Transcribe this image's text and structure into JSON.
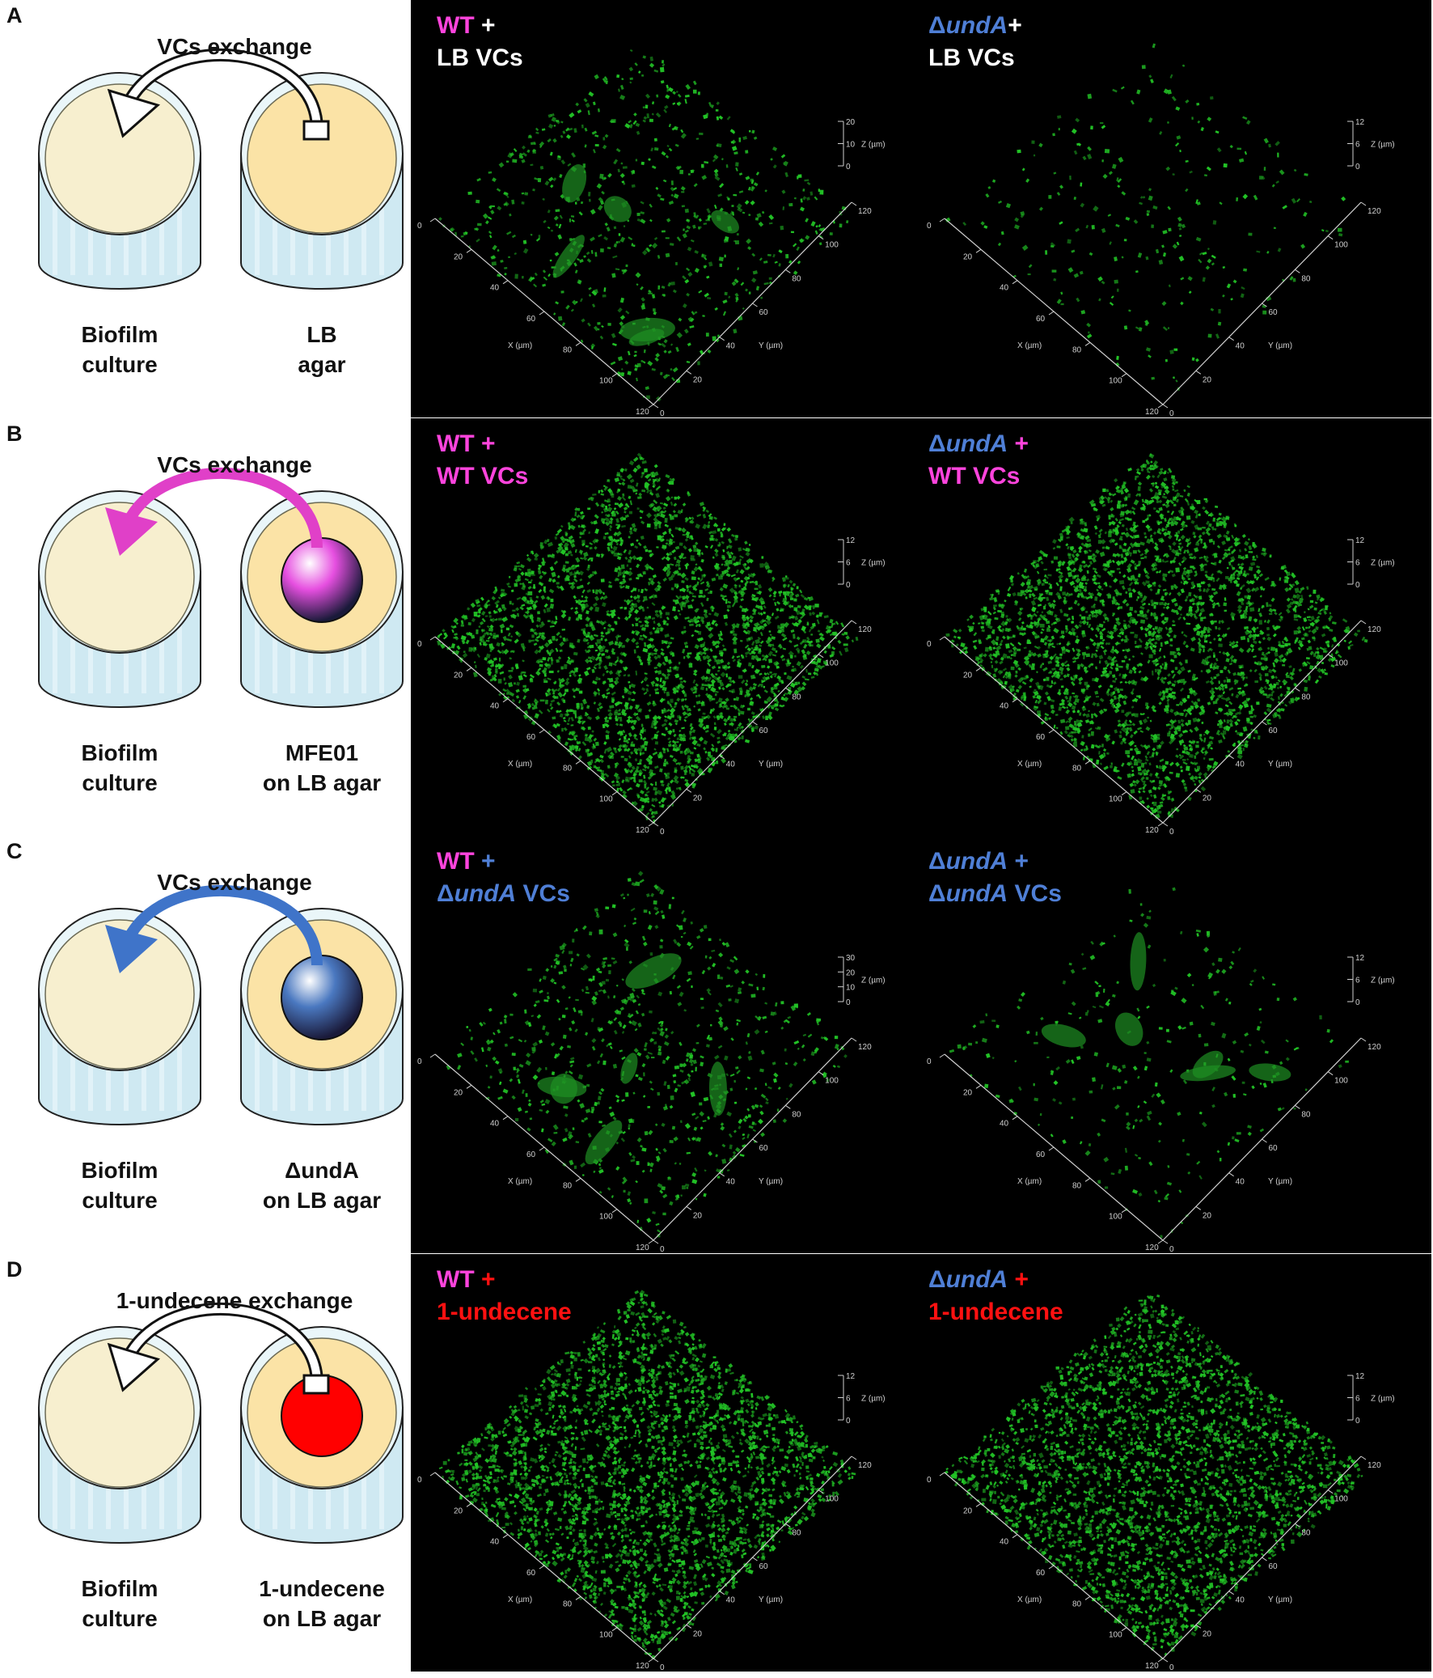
{
  "panels": [
    {
      "letter": "A",
      "exchange": "VCs exchange",
      "arrow_color": "#ffffff",
      "arrow_stroke": "#111111",
      "source_blob": "none",
      "blob_color": "",
      "left_dish_label": [
        "Biofilm",
        "culture"
      ],
      "right_dish_label": [
        "LB",
        "agar"
      ],
      "images": [
        {
          "line1": [
            {
              "t": "WT",
              "c": "wt"
            },
            {
              "t": " +",
              "c": "white"
            }
          ],
          "line2": [
            {
              "t": "LB VCs",
              "c": "white"
            }
          ],
          "zticks": [
            "20",
            "10",
            "0"
          ],
          "density": "sparse",
          "cluster": true
        },
        {
          "line1": [
            {
              "t": "Δ",
              "c": "und"
            },
            {
              "t": "undA",
              "c": "und",
              "i": true
            },
            {
              "t": "+",
              "c": "white"
            }
          ],
          "line2": [
            {
              "t": "LB VCs",
              "c": "white"
            }
          ],
          "zticks": [
            "12",
            "6",
            "0"
          ],
          "density": "verysparse",
          "cluster": false
        }
      ]
    },
    {
      "letter": "B",
      "exchange": "VCs exchange",
      "arrow_color": "#e040c8",
      "arrow_stroke": "#e040c8",
      "source_blob": "sphere",
      "blob_color": "#e64fe0",
      "left_dish_label": [
        "Biofilm",
        "culture"
      ],
      "right_dish_label": [
        "MFE01",
        "on LB agar"
      ],
      "images": [
        {
          "line1": [
            {
              "t": "WT +",
              "c": "wt"
            }
          ],
          "line2": [
            {
              "t": "WT VCs",
              "c": "wt"
            }
          ],
          "zticks": [
            "12",
            "6",
            "0"
          ],
          "density": "dense",
          "cluster": false
        },
        {
          "line1": [
            {
              "t": "Δ",
              "c": "und"
            },
            {
              "t": "undA",
              "c": "und",
              "i": true
            },
            {
              "t": " +",
              "c": "wt"
            }
          ],
          "line2": [
            {
              "t": "WT VCs",
              "c": "wt"
            }
          ],
          "zticks": [
            "12",
            "6",
            "0"
          ],
          "density": "dense",
          "cluster": false
        }
      ]
    },
    {
      "letter": "C",
      "exchange": "VCs exchange",
      "arrow_color": "#3f74c9",
      "arrow_stroke": "#3f74c9",
      "source_blob": "sphere",
      "blob_color": "#4a78c0",
      "left_dish_label": [
        "Biofilm",
        "culture"
      ],
      "right_dish_label": [
        "ΔundA",
        "on LB agar"
      ],
      "images": [
        {
          "line1": [
            {
              "t": "WT",
              "c": "wt"
            },
            {
              "t": " +",
              "c": "und"
            }
          ],
          "line2": [
            {
              "t": "Δ",
              "c": "und"
            },
            {
              "t": "undA",
              "c": "und",
              "i": true
            },
            {
              "t": " VCs",
              "c": "und"
            }
          ],
          "zticks": [
            "30",
            "20",
            "10",
            "0"
          ],
          "density": "sparse",
          "cluster": true
        },
        {
          "line1": [
            {
              "t": "Δ",
              "c": "und"
            },
            {
              "t": "undA",
              "c": "und",
              "i": true
            },
            {
              "t": " +",
              "c": "und"
            }
          ],
          "line2": [
            {
              "t": "Δ",
              "c": "und"
            },
            {
              "t": "undA",
              "c": "und",
              "i": true
            },
            {
              "t": " VCs",
              "c": "und"
            }
          ],
          "zticks": [
            "12",
            "6",
            "0"
          ],
          "density": "verysparse",
          "cluster": true
        }
      ]
    },
    {
      "letter": "D",
      "exchange": "1-undecene exchange",
      "arrow_color": "#ffffff",
      "arrow_stroke": "#111111",
      "source_blob": "flat",
      "blob_color": "#ff0000",
      "left_dish_label": [
        "Biofilm",
        "culture"
      ],
      "right_dish_label": [
        "1-undecene",
        "on LB agar"
      ],
      "images": [
        {
          "line1": [
            {
              "t": "WT",
              "c": "wt"
            },
            {
              "t": " +",
              "c": "red"
            }
          ],
          "line2": [
            {
              "t": "1-undecene",
              "c": "red"
            }
          ],
          "zticks": [
            "12",
            "6",
            "0"
          ],
          "density": "dense",
          "cluster": false
        },
        {
          "line1": [
            {
              "t": "Δ",
              "c": "und"
            },
            {
              "t": "undA",
              "c": "und",
              "i": true
            },
            {
              "t": " +",
              "c": "red"
            }
          ],
          "line2": [
            {
              "t": "1-undecene",
              "c": "red"
            }
          ],
          "zticks": [
            "12",
            "6",
            "0"
          ],
          "density": "dense",
          "cluster": false
        }
      ]
    }
  ],
  "axis": {
    "x_label": "X (µm)",
    "y_label": "Y (µm)",
    "z_label": "Z (µm)",
    "x_ticks": [
      "0",
      "20",
      "40",
      "60",
      "80",
      "100",
      "120"
    ],
    "y_ticks": [
      "0",
      "20",
      "40",
      "60",
      "80",
      "100",
      "120"
    ]
  },
  "colors": {
    "dish_agar": "#fbe3a6",
    "dish_plain": "#f7efcf",
    "dish_glass": "#cfe9f2",
    "cells": "#22c426"
  }
}
